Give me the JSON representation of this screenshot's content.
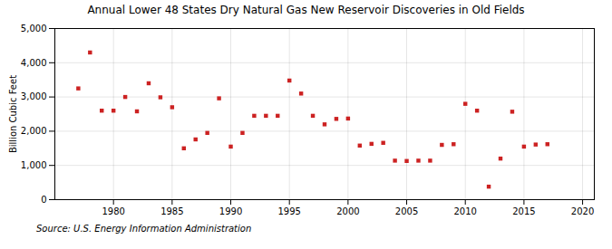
{
  "chart_data": {
    "type": "scatter",
    "title": "Annual Lower 48 States Dry Natural Gas New Reservoir Discoveries in Old Fields",
    "ylabel": "Billion Cubic Feet",
    "source": "Source: U.S. Energy Information Administration",
    "x": [
      1977,
      1978,
      1979,
      1980,
      1981,
      1982,
      1983,
      1984,
      1985,
      1986,
      1987,
      1988,
      1989,
      1990,
      1991,
      1992,
      1993,
      1994,
      1995,
      1996,
      1997,
      1998,
      1999,
      2000,
      2001,
      2002,
      2003,
      2004,
      2005,
      2006,
      2007,
      2008,
      2009,
      2010,
      2011,
      2012,
      2013,
      2014,
      2015,
      2016,
      2017
    ],
    "values": [
      3250,
      4300,
      2600,
      2600,
      3000,
      2580,
      3400,
      2990,
      2700,
      1500,
      1760,
      1950,
      2960,
      1550,
      1950,
      2450,
      2450,
      2450,
      3480,
      3100,
      2450,
      2200,
      2360,
      2370,
      1580,
      1630,
      1660,
      1140,
      1130,
      1140,
      1140,
      1600,
      1620,
      2800,
      2600,
      380,
      1200,
      2570,
      1550,
      1610,
      1620
    ],
    "color": "#cc2222",
    "marker": "square",
    "xlim": [
      1975,
      2021
    ],
    "xticks": [
      1980,
      1985,
      1990,
      1995,
      2000,
      2005,
      2010,
      2015,
      2020
    ],
    "ylim": [
      0,
      5000
    ],
    "yticks": [
      0,
      {
        "value": 1000,
        "label": "1,000"
      },
      {
        "value": 2000,
        "label": "2,000"
      },
      {
        "value": 3000,
        "label": "3,000"
      },
      {
        "value": 4000,
        "label": "4,000"
      },
      {
        "value": 5000,
        "label": "5,000"
      }
    ],
    "grid": true
  }
}
